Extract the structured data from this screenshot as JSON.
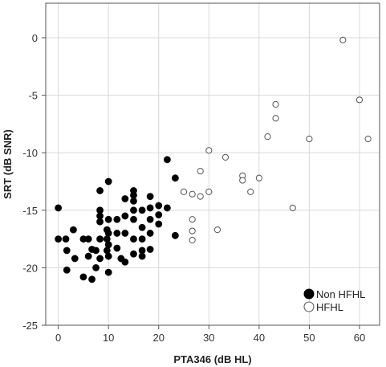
{
  "chart_data": {
    "type": "scatter",
    "title": "",
    "xlabel": "PTA346 (dB HL)",
    "ylabel": "SRT (dB SNR)",
    "xlim": [
      -2.5,
      64
    ],
    "ylim": [
      -25,
      3
    ],
    "xticks": [
      0,
      10,
      20,
      30,
      40,
      50,
      60
    ],
    "yticks": [
      0,
      -5,
      -10,
      -15,
      -20,
      -25
    ],
    "grid": true,
    "legend_position": "bottom-right",
    "series": [
      {
        "name": "Non HFHL",
        "marker": "filled-circle",
        "color": "#000000",
        "points": [
          [
            0,
            -14.8
          ],
          [
            0,
            -17.5
          ],
          [
            1.5,
            -17.5
          ],
          [
            1.7,
            -18.5
          ],
          [
            1.7,
            -20.2
          ],
          [
            3,
            -16.7
          ],
          [
            3.3,
            -19.2
          ],
          [
            5,
            -17.5
          ],
          [
            5,
            -20.8
          ],
          [
            6,
            -17.5
          ],
          [
            6,
            -19.0
          ],
          [
            6.7,
            -18.4
          ],
          [
            6.7,
            -21.0
          ],
          [
            7.5,
            -18.5
          ],
          [
            7.5,
            -20.0
          ],
          [
            8.3,
            -13.3
          ],
          [
            8.3,
            -15.0
          ],
          [
            8.3,
            -15.5
          ],
          [
            8.3,
            -16.0
          ],
          [
            8.3,
            -17.5
          ],
          [
            8.3,
            -19.2
          ],
          [
            9.7,
            -16.7
          ],
          [
            9.7,
            -17.5
          ],
          [
            9.7,
            -18.5
          ],
          [
            10,
            -12.5
          ],
          [
            10,
            -15.8
          ],
          [
            10,
            -17.0
          ],
          [
            10,
            -18.0
          ],
          [
            10,
            -19.0
          ],
          [
            10,
            -20.4
          ],
          [
            11.7,
            -15.8
          ],
          [
            11.7,
            -17.0
          ],
          [
            11.7,
            -18.3
          ],
          [
            12.5,
            -19.2
          ],
          [
            13.3,
            -14.0
          ],
          [
            13.3,
            -15.5
          ],
          [
            13.3,
            -17.0
          ],
          [
            13.3,
            -19.5
          ],
          [
            15,
            -13.3
          ],
          [
            15,
            -13.7
          ],
          [
            15,
            -14.2
          ],
          [
            15,
            -15.0
          ],
          [
            15,
            -15.8
          ],
          [
            15,
            -17.5
          ],
          [
            15,
            -18.8
          ],
          [
            16.7,
            -15.0
          ],
          [
            16.7,
            -16.5
          ],
          [
            16.7,
            -17.5
          ],
          [
            16.7,
            -18.5
          ],
          [
            16.7,
            -19.0
          ],
          [
            18.3,
            -13.8
          ],
          [
            18.3,
            -14.8
          ],
          [
            18.3,
            -15.8
          ],
          [
            18.3,
            -17.0
          ],
          [
            18.3,
            -18.4
          ],
          [
            20,
            -14.6
          ],
          [
            20,
            -15.4
          ],
          [
            20,
            -16.2
          ],
          [
            21.7,
            -10.6
          ],
          [
            21.7,
            -14.8
          ],
          [
            23.3,
            -12.2
          ],
          [
            23.3,
            -17.2
          ]
        ]
      },
      {
        "name": "HFHL",
        "marker": "open-circle",
        "color": "#555555",
        "points": [
          [
            25,
            -13.4
          ],
          [
            26.7,
            -13.6
          ],
          [
            26.7,
            -15.8
          ],
          [
            26.7,
            -16.8
          ],
          [
            26.7,
            -17.6
          ],
          [
            28.3,
            -11.6
          ],
          [
            28.3,
            -13.8
          ],
          [
            30,
            -9.8
          ],
          [
            30,
            -13.4
          ],
          [
            31.7,
            -16.7
          ],
          [
            33.3,
            -10.4
          ],
          [
            36.7,
            -12.0
          ],
          [
            36.7,
            -12.4
          ],
          [
            38.3,
            -13.4
          ],
          [
            40,
            -12.2
          ],
          [
            41.7,
            -8.6
          ],
          [
            43.3,
            -5.8
          ],
          [
            43.3,
            -7.0
          ],
          [
            46.7,
            -14.8
          ],
          [
            50,
            -8.8
          ],
          [
            56.7,
            -0.2
          ],
          [
            60,
            -5.4
          ],
          [
            61.7,
            -8.8
          ]
        ]
      }
    ]
  }
}
